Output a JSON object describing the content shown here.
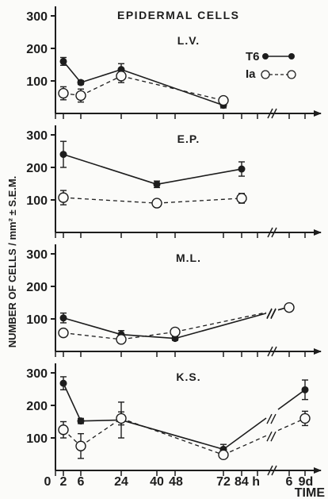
{
  "chart_data": {
    "type": "line",
    "title": "EPIDERMAL CELLS",
    "ylabel": "NUMBER OF CELLS / mm² ± S.E.M.",
    "xlabel": "TIME",
    "x_tick_labels": [
      "0",
      "2",
      "6",
      "24",
      "40",
      "48",
      "72",
      "84 h",
      "6",
      "9d"
    ],
    "y_tick_labels": [
      "100",
      "200",
      "300"
    ],
    "legend": [
      {
        "name": "T6",
        "marker": "filled"
      },
      {
        "name": "Ia",
        "marker": "open"
      }
    ],
    "ylim": [
      0,
      330
    ],
    "panels": [
      {
        "label": "L.V.",
        "series": [
          {
            "name": "T6",
            "style": "solid",
            "points": [
              {
                "x": "2",
                "y": 160,
                "err": 12
              },
              {
                "x": "6",
                "y": 95,
                "err": 6
              },
              {
                "x": "24",
                "y": 135,
                "err": 18
              },
              {
                "x": "72",
                "y": 25,
                "err": 8
              }
            ]
          },
          {
            "name": "Ia",
            "style": "dashed",
            "points": [
              {
                "x": "2",
                "y": 62,
                "err": 20
              },
              {
                "x": "6",
                "y": 55,
                "err": 20
              },
              {
                "x": "24",
                "y": 115,
                "err": 20
              },
              {
                "x": "72",
                "y": 40,
                "err": 10
              }
            ]
          }
        ]
      },
      {
        "label": "E.P.",
        "series": [
          {
            "name": "T6",
            "style": "solid",
            "points": [
              {
                "x": "2",
                "y": 240,
                "err": 40
              },
              {
                "x": "40",
                "y": 148,
                "err": 10
              },
              {
                "x": "84 h",
                "y": 195,
                "err": 22
              }
            ]
          },
          {
            "name": "Ia",
            "style": "dashed",
            "points": [
              {
                "x": "2",
                "y": 107,
                "err": 22
              },
              {
                "x": "40",
                "y": 90,
                "err": 12
              },
              {
                "x": "84 h",
                "y": 105,
                "err": 15
              }
            ]
          }
        ]
      },
      {
        "label": "M.L.",
        "series": [
          {
            "name": "T6",
            "style": "solid",
            "points": [
              {
                "x": "2",
                "y": 103,
                "err": 15
              },
              {
                "x": "24",
                "y": 52,
                "err": 12
              },
              {
                "x": "48",
                "y": 40,
                "err": 6
              },
              {
                "x": "6",
                "y": 137,
                "err": 8
              }
            ]
          },
          {
            "name": "Ia",
            "style": "dashed",
            "points": [
              {
                "x": "2",
                "y": 57,
                "err": 10
              },
              {
                "x": "24",
                "y": 37,
                "err": 10
              },
              {
                "x": "48",
                "y": 60,
                "err": 8
              },
              {
                "x": "6",
                "y": 135,
                "err": 8
              }
            ]
          }
        ]
      },
      {
        "label": "K.S.",
        "series": [
          {
            "name": "T6",
            "style": "solid",
            "points": [
              {
                "x": "2",
                "y": 268,
                "err": 20
              },
              {
                "x": "6",
                "y": 152,
                "err": 8
              },
              {
                "x": "24",
                "y": 155,
                "err": 55
              },
              {
                "x": "72",
                "y": 65,
                "err": 15
              },
              {
                "x": "9d",
                "y": 248,
                "err": 30
              }
            ]
          },
          {
            "name": "Ia",
            "style": "dashed",
            "points": [
              {
                "x": "2",
                "y": 125,
                "err": 25
              },
              {
                "x": "6",
                "y": 75,
                "err": 38
              },
              {
                "x": "24",
                "y": 160,
                "err": 20
              },
              {
                "x": "72",
                "y": 48,
                "err": 10
              },
              {
                "x": "9d",
                "y": 160,
                "err": 22
              }
            ]
          }
        ]
      }
    ]
  }
}
